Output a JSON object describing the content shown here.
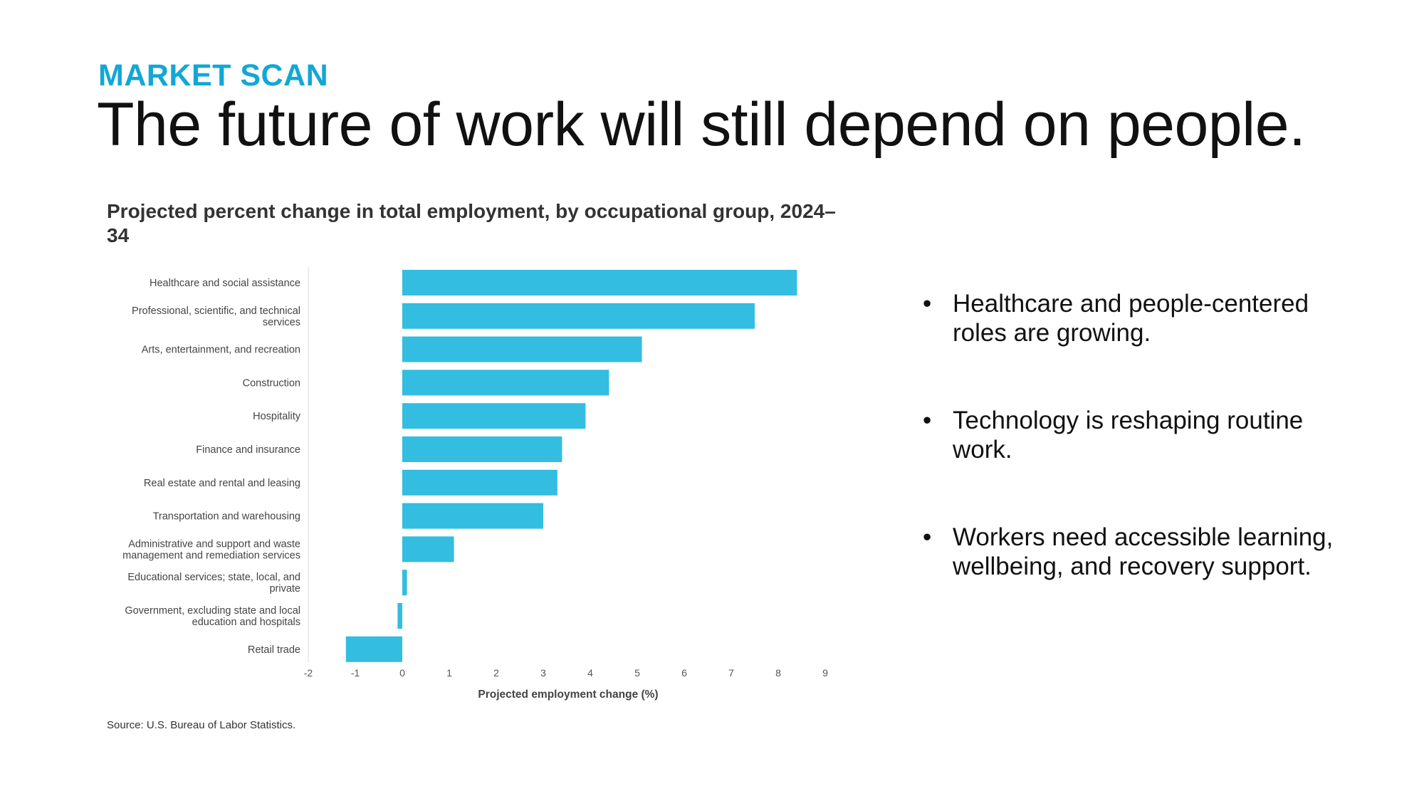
{
  "slide": {
    "kicker": "MARKET SCAN",
    "headline": "The future of work will still depend on people.",
    "accent_color": "#12a7d6",
    "bar_color": "#33bde0"
  },
  "bullets": [
    "Healthcare and people-centered roles are growing.",
    "Technology is reshaping routine work.",
    "Workers need accessible learning, wellbeing, and recovery support."
  ],
  "source": "Source: U.S. Bureau of Labor Statistics.",
  "chart_data": {
    "type": "bar",
    "orientation": "horizontal",
    "title": "Projected percent change in total employment, by occupational group, 2024–34",
    "xlabel": "Projected employment change (%)",
    "ylabel": "",
    "xlim": [
      -2,
      9
    ],
    "xticks": [
      -2,
      -1,
      0,
      1,
      2,
      3,
      4,
      5,
      6,
      7,
      8,
      9
    ],
    "grid": false,
    "categories": [
      [
        "Healthcare and social assistance"
      ],
      [
        "Professional, scientific, and technical",
        "services"
      ],
      [
        "Arts, entertainment, and recreation"
      ],
      [
        "Construction"
      ],
      [
        "Hospitality"
      ],
      [
        "Finance and insurance"
      ],
      [
        "Real estate and rental and leasing"
      ],
      [
        "Transportation and warehousing"
      ],
      [
        "Administrative and support and waste",
        "management and remediation services"
      ],
      [
        "Educational services; state, local, and",
        "private"
      ],
      [
        "Government, excluding state and local",
        "education and hospitals"
      ],
      [
        "Retail trade"
      ]
    ],
    "values": [
      8.4,
      7.5,
      5.1,
      4.4,
      3.9,
      3.4,
      3.3,
      3.0,
      1.1,
      0.1,
      -0.1,
      -1.2
    ]
  }
}
